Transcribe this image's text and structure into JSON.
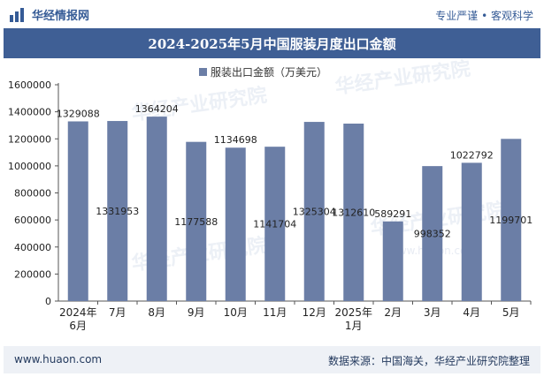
{
  "header": {
    "brand": "华经情报网",
    "tagline": "专业严谨 • 客观科学",
    "title": "2024-2025年5月中国服装月度出口金额"
  },
  "footer": {
    "url": "www.huaon.com",
    "source": "数据来源：中国海关，华经产业研究院整理"
  },
  "watermark": "华经产业研究院",
  "watermark_url": "www.huaon.com",
  "colors": {
    "bar": "#6b7ea6",
    "title_bg": "#3f5f95",
    "legend": "#6b7ea6"
  },
  "chart_data": {
    "type": "bar",
    "title": "2024-2025年5月中国服装月度出口金额",
    "legend": "服装出口金额（万美元）",
    "categories": [
      "2024年\n6月",
      "7月",
      "8月",
      "9月",
      "10月",
      "11月",
      "12月",
      "2025年\n1月",
      "2月",
      "3月",
      "4月",
      "5月"
    ],
    "values": [
      1329088,
      1331953,
      1364204,
      1177588,
      1134698,
      1141704,
      1325304,
      1312610,
      589291,
      998352,
      1022792,
      1199701
    ],
    "label_position": [
      "above",
      "inside",
      "above",
      "inside",
      "above",
      "inside",
      "inside",
      "inside",
      "above",
      "inside",
      "above",
      "inside"
    ],
    "yticks": [
      0,
      200000,
      400000,
      600000,
      800000,
      1000000,
      1200000,
      1400000,
      1600000
    ],
    "ylim": [
      0,
      1600000
    ],
    "xlabel": "",
    "ylabel": ""
  }
}
